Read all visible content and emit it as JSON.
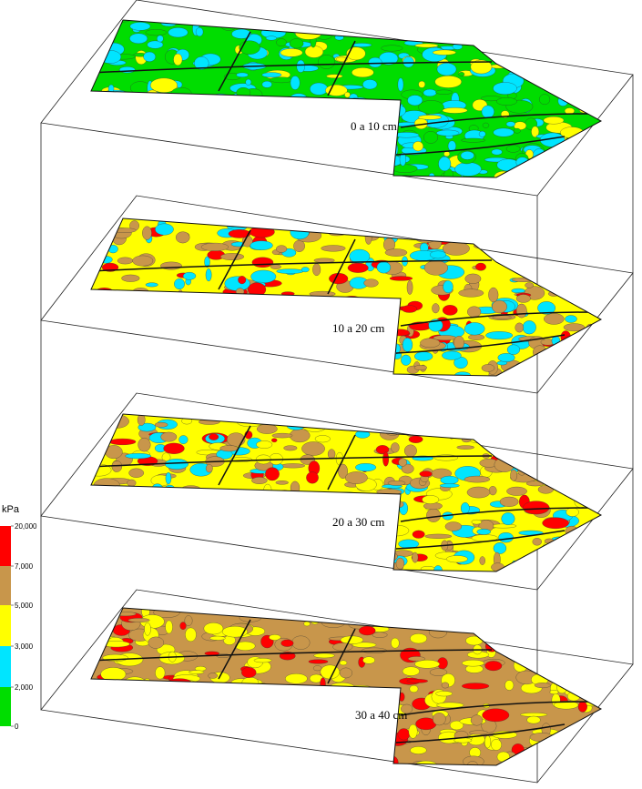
{
  "legend": {
    "title": "kPa",
    "ticks": [
      {
        "value": 20000,
        "label": "20,000"
      },
      {
        "value": 7000,
        "label": "7,000"
      },
      {
        "value": 5000,
        "label": "5,000"
      },
      {
        "value": 3000,
        "label": "3,000"
      },
      {
        "value": 2000,
        "label": "2,000"
      },
      0
    ],
    "colors": [
      "#ff0000",
      "#c8964b",
      "#ffff00",
      "#00e5ff",
      "#00dd00"
    ]
  },
  "layers": [
    {
      "label": "0 a 10 cm"
    },
    {
      "label": "10 a 20 cm"
    },
    {
      "label": "20 a 30 cm"
    },
    {
      "label": "30 a 40 cm"
    }
  ]
}
